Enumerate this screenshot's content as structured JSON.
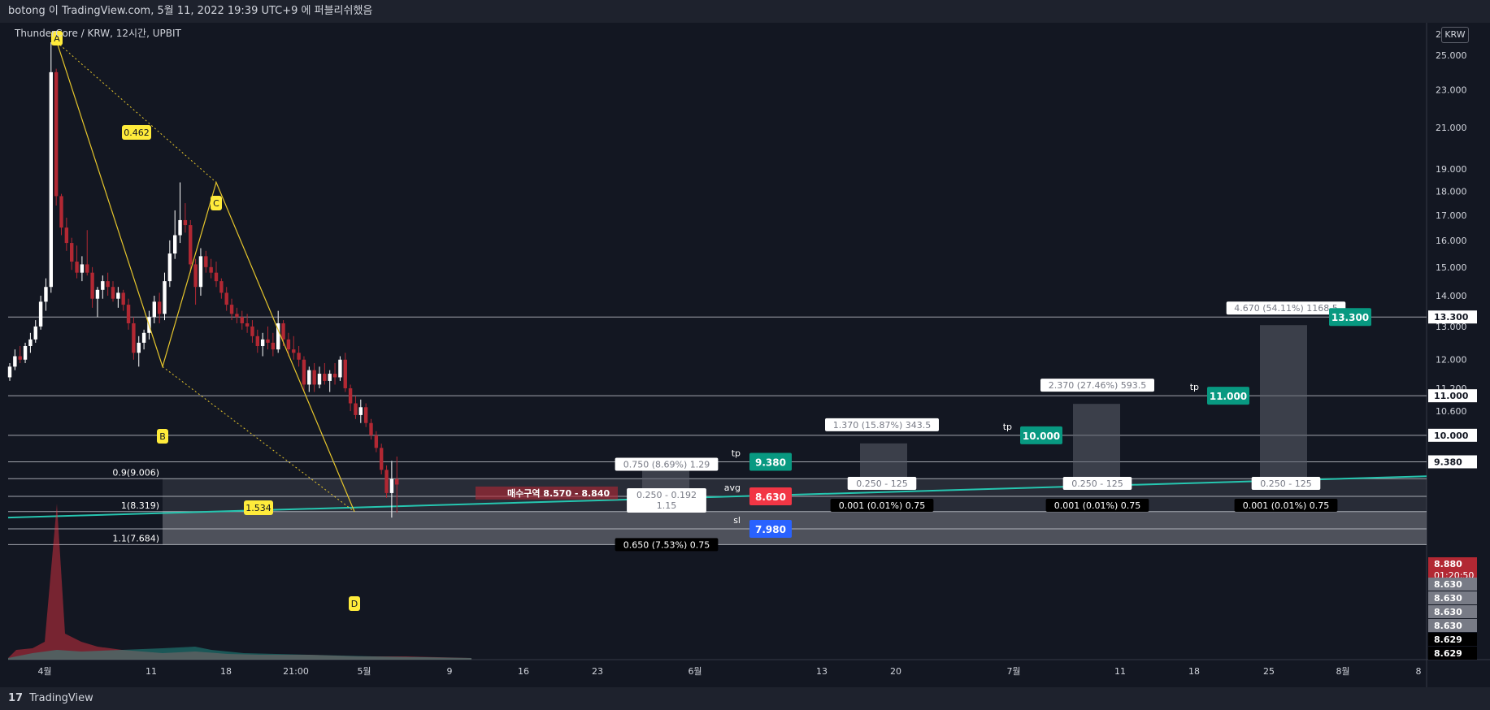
{
  "header": {
    "attribution": "botong 이 TradingView.com, 5월 11, 2022 19:39 UTC+9 에 퍼블리쉬했음"
  },
  "footer": {
    "brand": "TradingView",
    "logo_mark": "17"
  },
  "chart_title": "ThunderCore / KRW, 12시간, UPBIT",
  "currency_button": "KRW",
  "chart_data": {
    "type": "candlestick",
    "y_axis": {
      "scale": "log",
      "ticks": [
        25000,
        23000,
        21000,
        19000,
        18000,
        17000,
        16000,
        15000,
        14000,
        13000,
        12000,
        11200,
        10600,
        10000,
        9380
      ],
      "tick_labels": [
        "25.000",
        "23.000",
        "21.000",
        "19.000",
        "18.000",
        "17.000",
        "16.000",
        "15.000",
        "14.000",
        "13.000",
        "12.000",
        "11.200",
        "10.600",
        "10.000",
        "9.380"
      ],
      "top_cut_label": "2"
    },
    "x_axis": {
      "ticks": [
        "4월",
        "11",
        "18",
        "21:00",
        "5월",
        "9",
        "16",
        "23",
        "6월",
        "13",
        "20",
        "7월",
        "11",
        "18",
        "25",
        "8월",
        "8"
      ]
    },
    "pattern_points": [
      {
        "label": "A",
        "value": 25800
      },
      {
        "label": "B",
        "value": 11800
      },
      {
        "label": "C",
        "value": 18400
      },
      {
        "label": "D",
        "value": 8319
      }
    ],
    "pattern_ratios": [
      "0.462",
      "1.534"
    ],
    "fib_levels": [
      {
        "label": "0.9(9.006)",
        "value": 9006
      },
      {
        "label": "1(8.319)",
        "value": 8319
      },
      {
        "label": "1.1(7.684)",
        "value": 7684
      }
    ],
    "buy_zone_label": "매수구역 8.570 - 8.840",
    "levels": [
      {
        "name": "",
        "value": 13300,
        "label": "13.300",
        "color": "#089981"
      },
      {
        "name": "tp",
        "value": 11000,
        "label": "11.000",
        "color": "#089981"
      },
      {
        "name": "tp",
        "value": 10000,
        "label": "10.000",
        "color": "#089981"
      },
      {
        "name": "tp",
        "value": 9380,
        "label": "9.380",
        "color": "#089981"
      },
      {
        "name": "avg",
        "value": 8630,
        "label": "8.630",
        "color": "#f23645"
      },
      {
        "name": "sl",
        "value": 7980,
        "label": "7.980",
        "color": "#2962ff"
      }
    ],
    "trade_boxes": [
      {
        "gain": "0.750 (8.69%) 1.29",
        "risk": "0.650 (7.53%) 0.75",
        "mid": "0.250 - 0.192",
        "mid2": "1.15"
      },
      {
        "gain": "1.370 (15.87%) 343.5",
        "risk": "0.001 (0.01%) 0.75",
        "mid": "0.250 - 125"
      },
      {
        "gain": "2.370 (27.46%) 593.5",
        "risk": "0.001 (0.01%) 0.75",
        "mid": "0.250 - 125"
      },
      {
        "gain": "4.670 (54.11%) 1168.5",
        "risk": "0.001 (0.01%) 0.75",
        "mid": "0.250 - 125"
      }
    ],
    "price_tags": [
      {
        "label": "13.300",
        "color": "#ffffff",
        "text_color": "#131722"
      },
      {
        "label": "11.000",
        "color": "#ffffff",
        "text_color": "#131722"
      },
      {
        "label": "10.000",
        "color": "#ffffff",
        "text_color": "#131722"
      },
      {
        "label": "9.380",
        "color": "#ffffff",
        "text_color": "#131722"
      },
      {
        "label": "8.880",
        "sub": "01:20:50",
        "color": "#b22833",
        "text_color": "#ffffff"
      },
      {
        "label": "8.630",
        "color": "#787b86",
        "text_color": "#ffffff"
      },
      {
        "label": "8.630",
        "color": "#787b86",
        "text_color": "#ffffff"
      },
      {
        "label": "8.630",
        "color": "#787b86",
        "text_color": "#ffffff"
      },
      {
        "label": "8.630",
        "color": "#787b86",
        "text_color": "#ffffff"
      },
      {
        "label": "8.629",
        "color": "#000000",
        "text_color": "#ffffff"
      },
      {
        "label": "8.629",
        "color": "#000000",
        "text_color": "#ffffff"
      }
    ],
    "candles": [
      {
        "o": 11500,
        "h": 11900,
        "l": 11400,
        "c": 11800
      },
      {
        "o": 11800,
        "h": 12300,
        "l": 11700,
        "c": 12100
      },
      {
        "o": 12100,
        "h": 12400,
        "l": 11900,
        "c": 12000
      },
      {
        "o": 12000,
        "h": 12500,
        "l": 11900,
        "c": 12400
      },
      {
        "o": 12400,
        "h": 12800,
        "l": 12200,
        "c": 12600
      },
      {
        "o": 12600,
        "h": 13200,
        "l": 12500,
        "c": 13000
      },
      {
        "o": 13000,
        "h": 14000,
        "l": 12900,
        "c": 13800
      },
      {
        "o": 13800,
        "h": 14600,
        "l": 13500,
        "c": 14300
      },
      {
        "o": 14300,
        "h": 25800,
        "l": 14100,
        "c": 24000
      },
      {
        "o": 24000,
        "h": 24200,
        "l": 17400,
        "c": 17800
      },
      {
        "o": 17800,
        "h": 17900,
        "l": 16200,
        "c": 16500
      },
      {
        "o": 16500,
        "h": 16900,
        "l": 15600,
        "c": 15900
      },
      {
        "o": 15900,
        "h": 16100,
        "l": 14900,
        "c": 15200
      },
      {
        "o": 15200,
        "h": 15800,
        "l": 14600,
        "c": 14800
      },
      {
        "o": 14800,
        "h": 15400,
        "l": 14500,
        "c": 15100
      },
      {
        "o": 15100,
        "h": 16400,
        "l": 14700,
        "c": 14800
      },
      {
        "o": 14800,
        "h": 15000,
        "l": 13600,
        "c": 13900
      },
      {
        "o": 13900,
        "h": 14300,
        "l": 13300,
        "c": 14200
      },
      {
        "o": 14200,
        "h": 14700,
        "l": 13900,
        "c": 14500
      },
      {
        "o": 14500,
        "h": 14800,
        "l": 14000,
        "c": 14300
      },
      {
        "o": 14300,
        "h": 14500,
        "l": 13800,
        "c": 13900
      },
      {
        "o": 13900,
        "h": 14300,
        "l": 13600,
        "c": 14100
      },
      {
        "o": 14100,
        "h": 14200,
        "l": 13500,
        "c": 13700
      },
      {
        "o": 13700,
        "h": 13900,
        "l": 12900,
        "c": 13100
      },
      {
        "o": 13100,
        "h": 13300,
        "l": 12000,
        "c": 12200
      },
      {
        "o": 12200,
        "h": 12700,
        "l": 11800,
        "c": 12500
      },
      {
        "o": 12500,
        "h": 12900,
        "l": 12300,
        "c": 12800
      },
      {
        "o": 12800,
        "h": 13500,
        "l": 12600,
        "c": 13300
      },
      {
        "o": 13300,
        "h": 14000,
        "l": 13100,
        "c": 13800
      },
      {
        "o": 13800,
        "h": 14100,
        "l": 13100,
        "c": 13400
      },
      {
        "o": 13400,
        "h": 14800,
        "l": 13200,
        "c": 14500
      },
      {
        "o": 14500,
        "h": 16000,
        "l": 14300,
        "c": 15500
      },
      {
        "o": 15500,
        "h": 17200,
        "l": 15300,
        "c": 16200
      },
      {
        "o": 16200,
        "h": 18400,
        "l": 15900,
        "c": 16800
      },
      {
        "o": 16800,
        "h": 17500,
        "l": 16300,
        "c": 16600
      },
      {
        "o": 16600,
        "h": 16800,
        "l": 14800,
        "c": 15100
      },
      {
        "o": 15100,
        "h": 15300,
        "l": 13700,
        "c": 14300
      },
      {
        "o": 14300,
        "h": 15700,
        "l": 14000,
        "c": 15400
      },
      {
        "o": 15400,
        "h": 15600,
        "l": 14800,
        "c": 15000
      },
      {
        "o": 15000,
        "h": 15300,
        "l": 14600,
        "c": 14800
      },
      {
        "o": 14800,
        "h": 15200,
        "l": 14300,
        "c": 14500
      },
      {
        "o": 14500,
        "h": 14600,
        "l": 13900,
        "c": 14100
      },
      {
        "o": 14100,
        "h": 14300,
        "l": 13500,
        "c": 13700
      },
      {
        "o": 13700,
        "h": 13900,
        "l": 13200,
        "c": 13400
      },
      {
        "o": 13400,
        "h": 13600,
        "l": 13100,
        "c": 13300
      },
      {
        "o": 13300,
        "h": 13500,
        "l": 12900,
        "c": 13100
      },
      {
        "o": 13100,
        "h": 13400,
        "l": 12800,
        "c": 13000
      },
      {
        "o": 13000,
        "h": 13200,
        "l": 12500,
        "c": 12700
      },
      {
        "o": 12700,
        "h": 12900,
        "l": 12200,
        "c": 12400
      },
      {
        "o": 12400,
        "h": 12800,
        "l": 12100,
        "c": 12600
      },
      {
        "o": 12600,
        "h": 13000,
        "l": 12300,
        "c": 12500
      },
      {
        "o": 12500,
        "h": 12800,
        "l": 12100,
        "c": 12300
      },
      {
        "o": 12300,
        "h": 13500,
        "l": 12200,
        "c": 13100
      },
      {
        "o": 13100,
        "h": 13200,
        "l": 12400,
        "c": 12600
      },
      {
        "o": 12600,
        "h": 12800,
        "l": 12100,
        "c": 12300
      },
      {
        "o": 12300,
        "h": 12700,
        "l": 12000,
        "c": 12200
      },
      {
        "o": 12200,
        "h": 12400,
        "l": 11800,
        "c": 12000
      },
      {
        "o": 12000,
        "h": 12100,
        "l": 11100,
        "c": 11300
      },
      {
        "o": 11300,
        "h": 11800,
        "l": 11100,
        "c": 11700
      },
      {
        "o": 11700,
        "h": 11900,
        "l": 11100,
        "c": 11300
      },
      {
        "o": 11300,
        "h": 11800,
        "l": 11200,
        "c": 11600
      },
      {
        "o": 11600,
        "h": 11900,
        "l": 11300,
        "c": 11400
      },
      {
        "o": 11400,
        "h": 11700,
        "l": 11100,
        "c": 11600
      },
      {
        "o": 11600,
        "h": 11900,
        "l": 11300,
        "c": 11500
      },
      {
        "o": 11500,
        "h": 12100,
        "l": 11400,
        "c": 12000
      },
      {
        "o": 12000,
        "h": 12200,
        "l": 11100,
        "c": 11200
      },
      {
        "o": 11200,
        "h": 11300,
        "l": 10600,
        "c": 10800
      },
      {
        "o": 10800,
        "h": 11000,
        "l": 10400,
        "c": 10500
      },
      {
        "o": 10500,
        "h": 10900,
        "l": 10300,
        "c": 10700
      },
      {
        "o": 10700,
        "h": 10800,
        "l": 10200,
        "c": 10300
      },
      {
        "o": 10300,
        "h": 10400,
        "l": 9900,
        "c": 10000
      },
      {
        "o": 10000,
        "h": 10100,
        "l": 9600,
        "c": 9700
      },
      {
        "o": 9700,
        "h": 9800,
        "l": 9100,
        "c": 9200
      },
      {
        "o": 9200,
        "h": 9300,
        "l": 8600,
        "c": 8700
      },
      {
        "o": 8700,
        "h": 9400,
        "l": 8200,
        "c": 9000
      },
      {
        "o": 9000,
        "h": 9500,
        "l": 8300,
        "c": 8880
      }
    ],
    "legend": "none"
  }
}
